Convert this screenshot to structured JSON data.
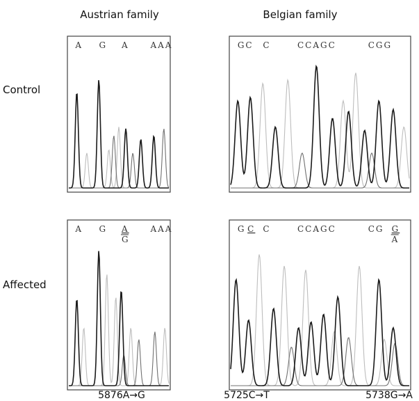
{
  "columns": [
    "Austrian family",
    "Belgian family"
  ],
  "rows": [
    "Control",
    "Affected"
  ],
  "panels": [
    {
      "sequence": [
        "A",
        "G",
        "A",
        "AAA"
      ]
    },
    {
      "sequence": [
        "GC",
        "C",
        "CCAGC",
        "CGG"
      ]
    },
    {
      "sequence": [
        "A",
        "G",
        {
          "top": "A",
          "bottom": "G"
        },
        "AAA"
      ]
    },
    {
      "sequence": [
        "G",
        {
          "text": "C",
          "underline": true
        },
        "C",
        "CCAGC",
        "CG",
        {
          "top": "G",
          "bottom": "A"
        }
      ]
    }
  ],
  "mutations": [
    "5876A→G",
    "5725C→T",
    "5738G→A"
  ]
}
